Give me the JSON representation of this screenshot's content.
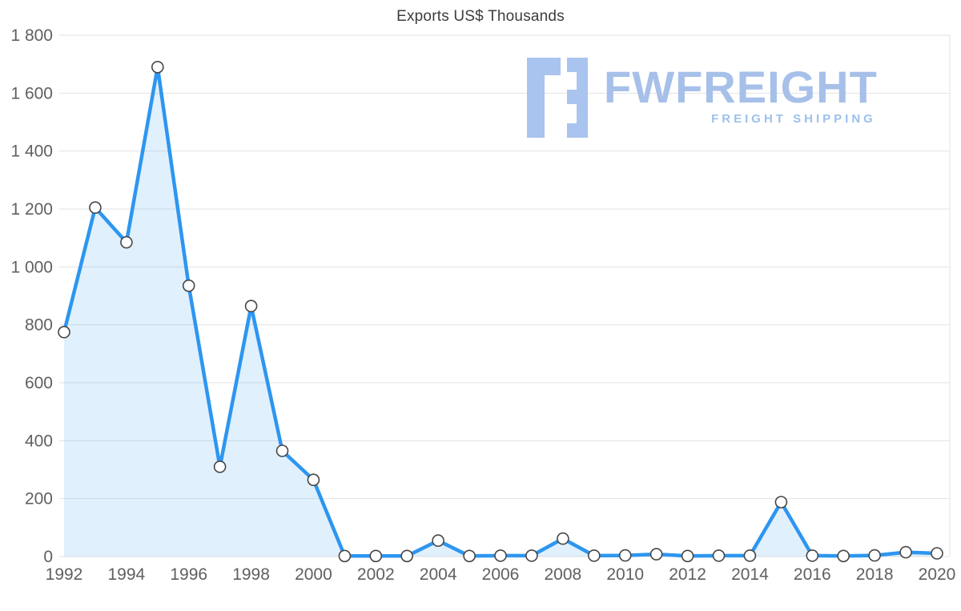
{
  "watermark": {
    "brand": "FWFREIGHT",
    "tagline": "FREIGHT SHIPPING",
    "color": "#a9c4ee"
  },
  "chart_data": {
    "type": "area",
    "title": "Exports US$ Thousands",
    "xlabel": "",
    "ylabel": "",
    "x": [
      1992,
      1993,
      1994,
      1995,
      1996,
      1997,
      1998,
      1999,
      2000,
      2001,
      2002,
      2003,
      2004,
      2005,
      2006,
      2007,
      2008,
      2009,
      2010,
      2011,
      2012,
      2013,
      2014,
      2015,
      2016,
      2017,
      2018,
      2019,
      2020
    ],
    "values": [
      775,
      1205,
      1085,
      1690,
      935,
      310,
      865,
      365,
      265,
      2,
      2,
      2,
      55,
      2,
      3,
      3,
      62,
      3,
      4,
      8,
      2,
      3,
      3,
      188,
      3,
      2,
      4,
      15,
      11
    ],
    "x_tick_labels": [
      "1992",
      "1994",
      "1996",
      "1998",
      "2000",
      "2002",
      "2004",
      "2006",
      "2008",
      "2010",
      "2012",
      "2014",
      "2016",
      "2018",
      "2020"
    ],
    "y_ticks": [
      0,
      200,
      400,
      600,
      800,
      1000,
      1200,
      1400,
      1600,
      1800
    ],
    "y_tick_labels": [
      "0",
      "200",
      "400",
      "600",
      "800",
      "1 000",
      "1 200",
      "1 400",
      "1 600",
      "1 800"
    ],
    "ylim": [
      0,
      1800
    ],
    "grid": "horizontal",
    "legend": "none",
    "line_color": "#2d96f0",
    "fill_color": "rgba(45,150,240,0.14)",
    "grid_color": "#e3e3e3",
    "axis_label_color": "#606060",
    "marker": {
      "fill": "#ffffff",
      "stroke": "#474747"
    }
  }
}
